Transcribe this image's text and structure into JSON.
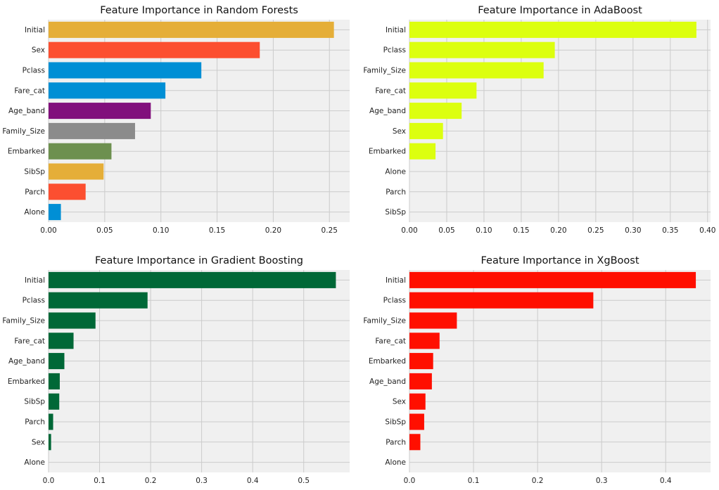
{
  "chart_data": [
    {
      "type": "bar",
      "orientation": "horizontal",
      "title": "Feature Importance in Random Forests",
      "categories": [
        "Initial",
        "Sex",
        "Pclass",
        "Fare_cat",
        "Age_band",
        "Family_Size",
        "Embarked",
        "SibSp",
        "Parch",
        "Alone"
      ],
      "values": [
        0.254,
        0.188,
        0.136,
        0.104,
        0.091,
        0.077,
        0.056,
        0.049,
        0.033,
        0.011
      ],
      "colors": [
        "#e5ae38",
        "#fc4f30",
        "#008fd5",
        "#008fd5",
        "#810f7c",
        "#8b8b8b",
        "#6d904f",
        "#e5ae38",
        "#fc4f30",
        "#008fd5"
      ],
      "xlim": [
        0,
        0.268
      ],
      "xticks": [
        0.0,
        0.05,
        0.1,
        0.15,
        0.2,
        0.25
      ],
      "xtick_labels": [
        "0.00",
        "0.05",
        "0.10",
        "0.15",
        "0.20",
        "0.25"
      ],
      "grid": true
    },
    {
      "type": "bar",
      "orientation": "horizontal",
      "title": "Feature Importance in AdaBoost",
      "categories": [
        "Initial",
        "Pclass",
        "Family_Size",
        "Fare_cat",
        "Age_band",
        "Sex",
        "Embarked",
        "Alone",
        "Parch",
        "SibSp"
      ],
      "values": [
        0.385,
        0.195,
        0.18,
        0.09,
        0.07,
        0.045,
        0.035,
        0,
        0,
        0
      ],
      "colors": [
        "#dcff0f",
        "#dcff0f",
        "#dcff0f",
        "#dcff0f",
        "#dcff0f",
        "#dcff0f",
        "#dcff0f",
        "#dcff0f",
        "#dcff0f",
        "#dcff0f"
      ],
      "xlim": [
        0,
        0.404
      ],
      "xticks": [
        0.0,
        0.05,
        0.1,
        0.15,
        0.2,
        0.25,
        0.3,
        0.35,
        0.4
      ],
      "xtick_labels": [
        "0.00",
        "0.05",
        "0.10",
        "0.15",
        "0.20",
        "0.25",
        "0.30",
        "0.35",
        "0.40"
      ],
      "grid": true
    },
    {
      "type": "bar",
      "orientation": "horizontal",
      "title": "Feature Importance in Gradient Boosting",
      "categories": [
        "Initial",
        "Pclass",
        "Family_Size",
        "Fare_cat",
        "Age_band",
        "Embarked",
        "SibSp",
        "Parch",
        "Sex",
        "Alone"
      ],
      "values": [
        0.563,
        0.194,
        0.092,
        0.049,
        0.031,
        0.022,
        0.021,
        0.009,
        0.005,
        0
      ],
      "colors": [
        "#006837",
        "#006837",
        "#006837",
        "#006837",
        "#006837",
        "#006837",
        "#006837",
        "#006837",
        "#006837",
        "#006837"
      ],
      "xlim": [
        0,
        0.59
      ],
      "xticks": [
        0.0,
        0.1,
        0.2,
        0.3,
        0.4,
        0.5
      ],
      "xtick_labels": [
        "0.0",
        "0.1",
        "0.2",
        "0.3",
        "0.4",
        "0.5"
      ],
      "grid": true
    },
    {
      "type": "bar",
      "orientation": "horizontal",
      "title": "Feature Importance in XgBoost",
      "categories": [
        "Initial",
        "Pclass",
        "Family_Size",
        "Fare_cat",
        "Embarked",
        "Age_band",
        "Sex",
        "SibSp",
        "Parch",
        "Alone"
      ],
      "values": [
        0.447,
        0.287,
        0.074,
        0.047,
        0.037,
        0.035,
        0.025,
        0.023,
        0.017,
        0
      ],
      "colors": [
        "#ff0f00",
        "#ff0f00",
        "#ff0f00",
        "#ff0f00",
        "#ff0f00",
        "#ff0f00",
        "#ff0f00",
        "#ff0f00",
        "#ff0f00",
        "#ff0f00"
      ],
      "xlim": [
        0,
        0.47
      ],
      "xticks": [
        0.0,
        0.1,
        0.2,
        0.3,
        0.4
      ],
      "xtick_labels": [
        "0.0",
        "0.1",
        "0.2",
        "0.3",
        "0.4"
      ],
      "grid": true
    }
  ]
}
